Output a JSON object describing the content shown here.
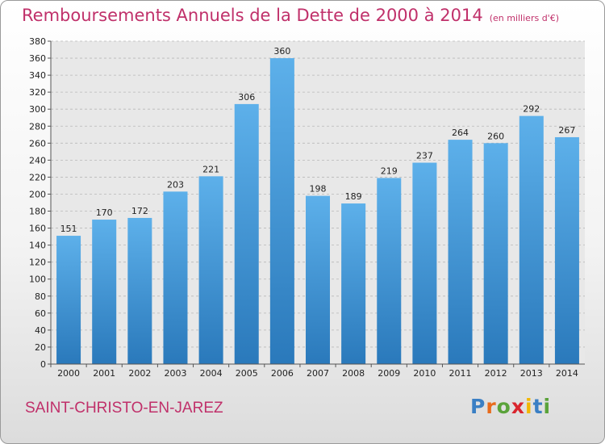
{
  "header": {
    "title": "Remboursements Annuels de la Dette de 2000 à 2014",
    "subtitle": "(en milliers d'€)"
  },
  "footer": {
    "town": "SAINT-CHRISTO-EN-JAREZ",
    "logo": "Proxiti",
    "logo_letters": [
      "P",
      "r",
      "o",
      "x",
      "i",
      "t",
      "i"
    ],
    "logo_colors": [
      "#3a7fc4",
      "#e86b1c",
      "#5aa33a",
      "#d9252e",
      "#f2b705",
      "#3a7fc4",
      "#5aa33a"
    ]
  },
  "chart_data": {
    "type": "bar",
    "title": "Remboursements Annuels de la Dette de 2000 à 2014",
    "subtitle": "(en milliers d'€)",
    "xlabel": "",
    "ylabel": "",
    "categories": [
      "2000",
      "2001",
      "2002",
      "2003",
      "2004",
      "2005",
      "2006",
      "2007",
      "2008",
      "2009",
      "2010",
      "2011",
      "2012",
      "2013",
      "2014"
    ],
    "values": [
      151,
      170,
      172,
      203,
      221,
      306,
      360,
      198,
      189,
      219,
      237,
      264,
      260,
      292,
      267
    ],
    "ylim": [
      0,
      380
    ],
    "ytick_step": 20,
    "grid": true,
    "bar_color_top": "#5db0ea",
    "bar_color_bottom": "#2a79bb"
  }
}
